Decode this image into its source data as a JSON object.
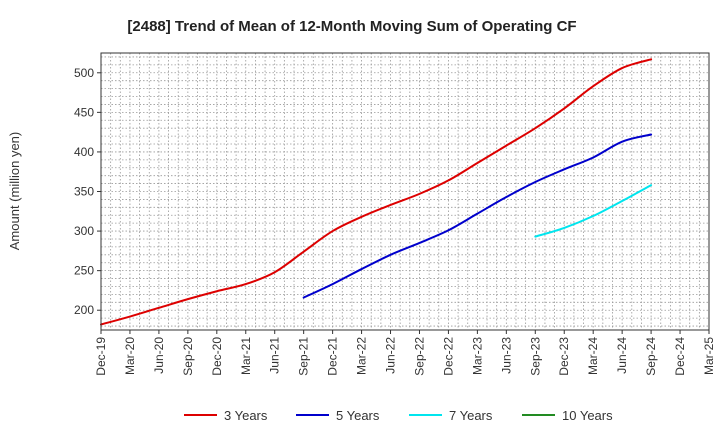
{
  "chart_data": {
    "type": "line",
    "title": "[2488]  Trend of Mean of 12-Month Moving Sum of Operating CF",
    "xlabel": "",
    "ylabel": "Amount (million yen)",
    "ylim": [
      175,
      525
    ],
    "yticks": [
      200,
      250,
      300,
      350,
      400,
      450,
      500
    ],
    "grid": true,
    "legend_position": "bottom",
    "categories": [
      "Dec-19",
      "Mar-20",
      "Jun-20",
      "Sep-20",
      "Dec-20",
      "Mar-21",
      "Jun-21",
      "Sep-21",
      "Dec-21",
      "Mar-22",
      "Jun-22",
      "Sep-22",
      "Dec-22",
      "Mar-23",
      "Jun-23",
      "Sep-23",
      "Dec-23",
      "Mar-24",
      "Jun-24",
      "Sep-24",
      "Dec-24",
      "Mar-25"
    ],
    "series": [
      {
        "name": "3 Years",
        "color": "#dd0000",
        "values": [
          182,
          192,
          203,
          214,
          224,
          233,
          248,
          274,
          300,
          318,
          333,
          347,
          364,
          386,
          408,
          430,
          455,
          483,
          506,
          517,
          null,
          null
        ]
      },
      {
        "name": "5 Years",
        "color": "#0000cc",
        "values": [
          null,
          null,
          null,
          null,
          null,
          null,
          null,
          216,
          233,
          252,
          270,
          285,
          301,
          322,
          343,
          362,
          378,
          393,
          413,
          422,
          null,
          null
        ]
      },
      {
        "name": "7 Years",
        "color": "#00e5ee",
        "values": [
          null,
          null,
          null,
          null,
          null,
          null,
          null,
          null,
          null,
          null,
          null,
          null,
          null,
          null,
          null,
          293,
          304,
          319,
          338,
          358,
          null,
          null
        ]
      },
      {
        "name": "10 Years",
        "color": "#228b22",
        "values": [
          null,
          null,
          null,
          null,
          null,
          null,
          null,
          null,
          null,
          null,
          null,
          null,
          null,
          null,
          null,
          null,
          null,
          null,
          null,
          null,
          null,
          null
        ]
      }
    ]
  }
}
